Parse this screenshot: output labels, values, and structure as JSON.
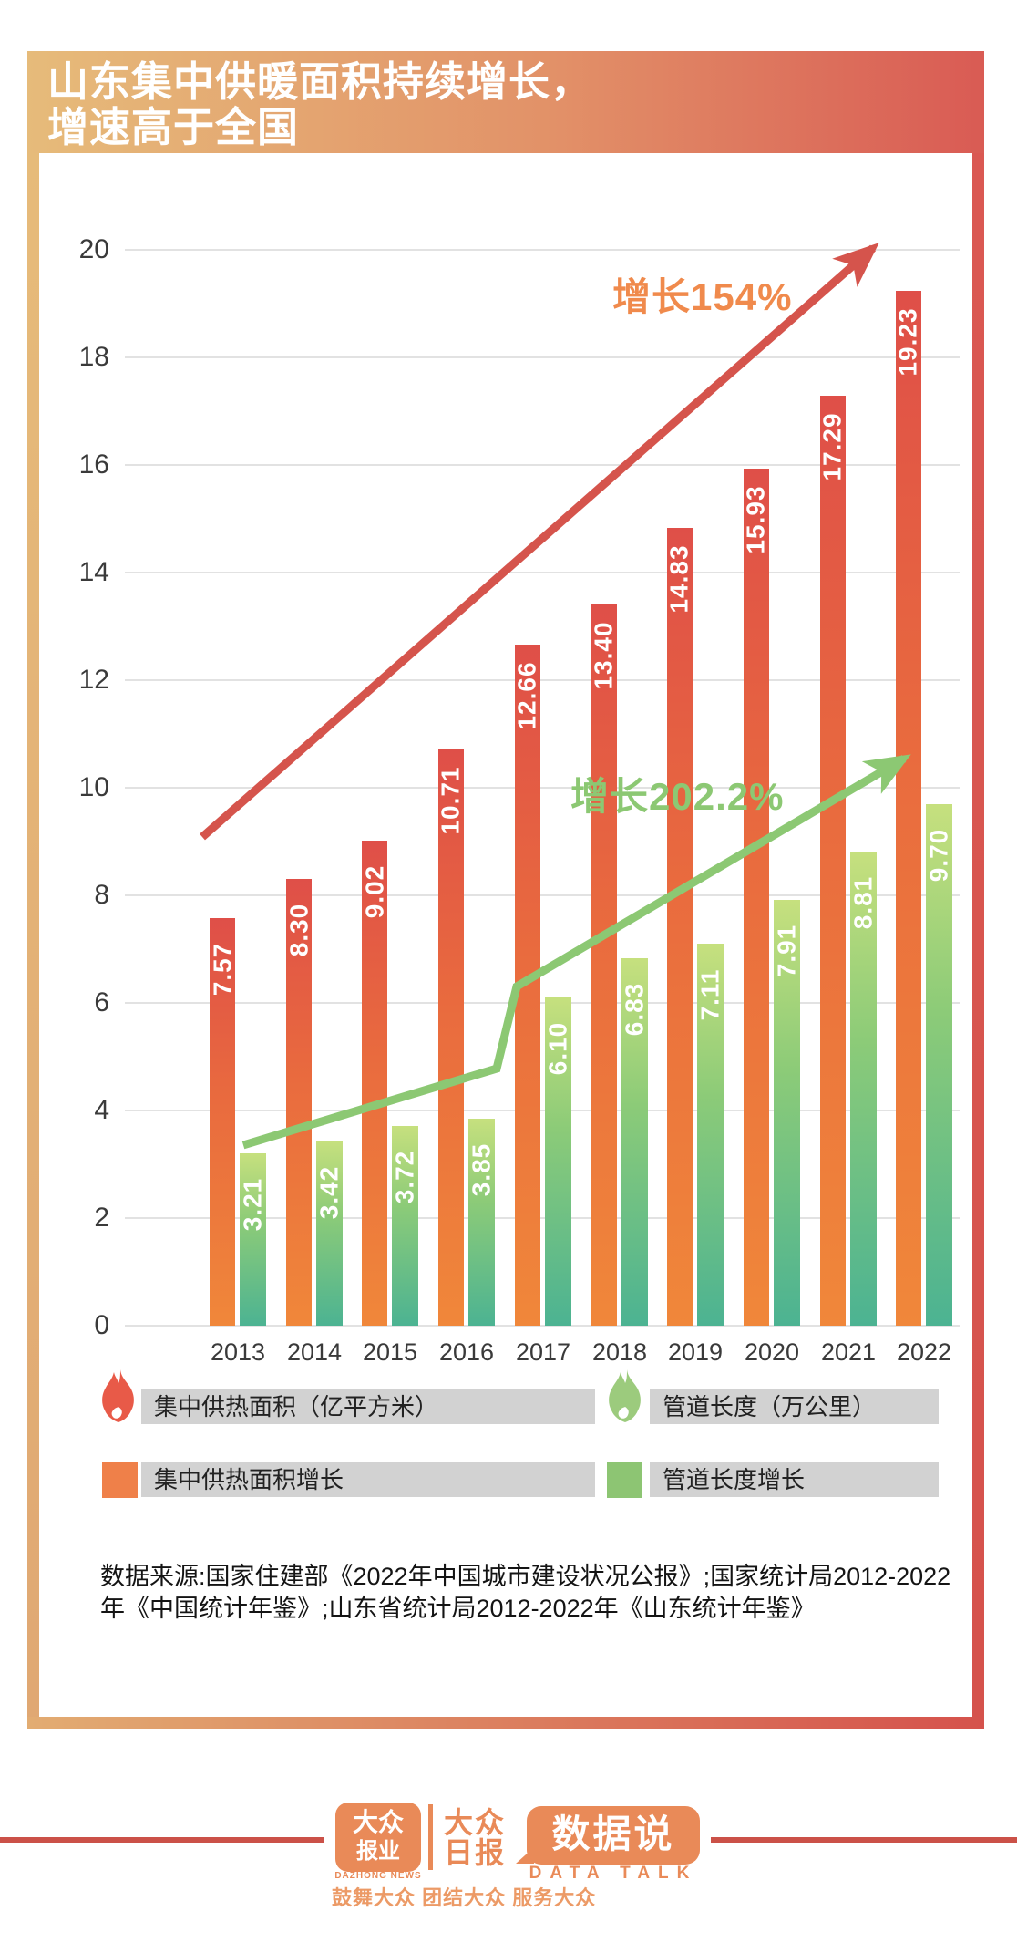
{
  "banner": {
    "title_line1": "山东集中供暖面积持续增长，",
    "title_line2": "增速高于全国"
  },
  "chart_data": {
    "type": "bar",
    "title": "山东集中供暖面积持续增长，增速高于全国",
    "categories": [
      "2013",
      "2014",
      "2015",
      "2016",
      "2017",
      "2018",
      "2019",
      "2020",
      "2021",
      "2022"
    ],
    "series": [
      {
        "name": "集中供热面积（亿平方米）",
        "color_top": "#df4f48",
        "color_bottom": "#f0873a",
        "values": [
          7.57,
          8.3,
          9.02,
          10.71,
          12.66,
          13.4,
          14.83,
          15.93,
          17.29,
          19.23
        ],
        "value_labels": [
          "7.57",
          "8.30",
          "9.02",
          "10.71",
          "12.66",
          "13.40",
          "14.83",
          "15.93",
          "17.29",
          "19.23"
        ]
      },
      {
        "name": "管道长度（万公里）",
        "color_top": "#c6e07e",
        "color_bottom": "#4cb392",
        "values": [
          3.21,
          3.42,
          3.72,
          3.85,
          6.1,
          6.83,
          7.11,
          7.91,
          8.81,
          9.7
        ],
        "value_labels": [
          "3.21",
          "3.42",
          "3.72",
          "3.85",
          "6.10",
          "6.83",
          "7.11",
          "7.91",
          "8.81",
          "9.70"
        ]
      }
    ],
    "xlabel": "",
    "ylabel": "",
    "ylim": [
      0,
      20
    ],
    "ytick_step": 2,
    "grid": true,
    "legend_position": "bottom",
    "annotations": [
      {
        "text": "增长154%",
        "series": "集中供热面积",
        "color": "#f08a4c",
        "arrow_color": "#d5544c"
      },
      {
        "text": "增长202.2%",
        "series": "管道长度",
        "color": "#8cc873",
        "arrow_color": "#8cc873"
      }
    ]
  },
  "legend": {
    "items": [
      {
        "icon": "flame-red",
        "label": "集中供热面积（亿平方米）"
      },
      {
        "icon": "flame-green",
        "label": "管道长度（万公里）"
      },
      {
        "icon": "square-orange",
        "label": "集中供热面积增长"
      },
      {
        "icon": "square-green",
        "label": "管道长度增长"
      }
    ]
  },
  "source": {
    "lines": [
      "数据来源:国家住建部《2022年中国城市建设状况公报》;国家统计局2012-2022",
      "年《中国统计年鉴》;山东省统计局2012-2022年《山东统计年鉴》"
    ]
  },
  "footer": {
    "brand_icon_line1": "大众",
    "brand_icon_line2": "报业",
    "brand_sub": "DAZHONG NEWS",
    "paper_line1": "大众",
    "paper_line2": "日报",
    "bubble_text": "数据说",
    "bubble_sub": "DATA TALK",
    "slogan": "鼓舞大众 团结大众 服务大众"
  },
  "colors": {
    "banner_gold": "#e6bb7a",
    "banner_red": "#d95b54",
    "arrow_red": "#d5544c",
    "arrow_green": "#8cc873",
    "annotation_orange": "#f08a4c",
    "legend_gray": "#d2d2d2",
    "flame_red": "#e85a48",
    "flame_green": "#9ccb7d",
    "legend_square_orange": "#ef8049",
    "legend_square_green": "#8dc573",
    "footer_orange": "#e98a58",
    "footer_line_red": "#cb5148"
  }
}
